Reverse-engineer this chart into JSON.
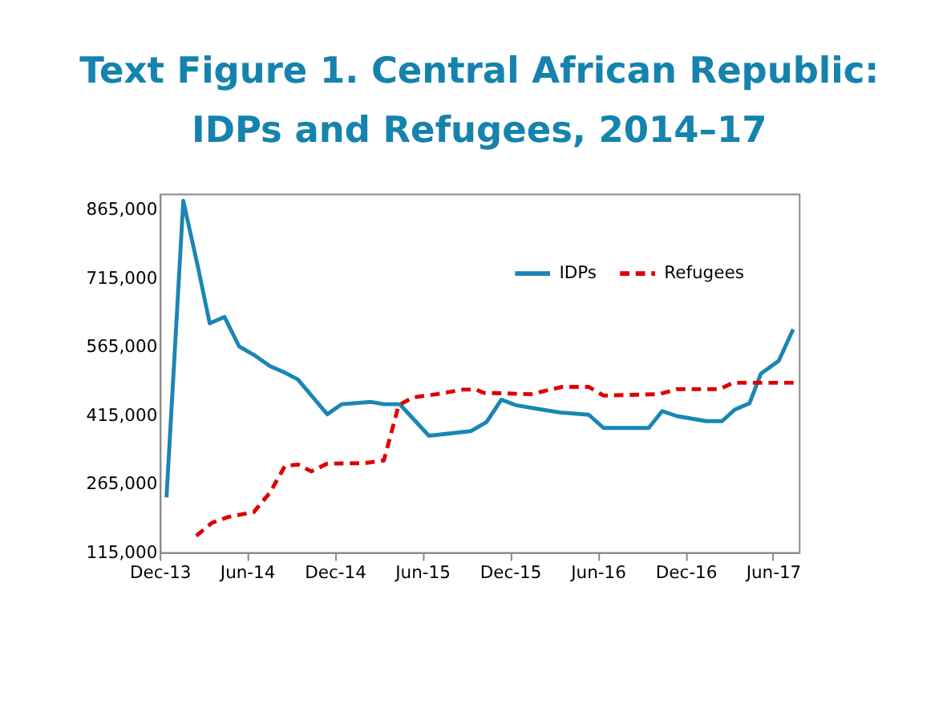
{
  "chart_data": {
    "type": "line",
    "title": "Text Figure 1. Central African Republic:\nIDPs and Refugees, 2014–17",
    "xlim": [
      "2013-12-01",
      "2017-07-25"
    ],
    "xticks": [
      {
        "value": "2013-12-01",
        "label": "Dec-13"
      },
      {
        "value": "2014-06-01",
        "label": "Jun-14"
      },
      {
        "value": "2014-12-01",
        "label": "Dec-14"
      },
      {
        "value": "2015-06-01",
        "label": "Jun-15"
      },
      {
        "value": "2015-12-01",
        "label": "Dec-15"
      },
      {
        "value": "2016-06-01",
        "label": "Jun-16"
      },
      {
        "value": "2016-12-01",
        "label": "Dec-16"
      },
      {
        "value": "2017-06-01",
        "label": "Jun-17"
      }
    ],
    "ylim": [
      115000,
      900000
    ],
    "yticks": [
      {
        "value": 115000,
        "label": "115,000"
      },
      {
        "value": 265000,
        "label": "265,000"
      },
      {
        "value": 415000,
        "label": "415,000"
      },
      {
        "value": 565000,
        "label": "565,000"
      },
      {
        "value": 715000,
        "label": "715,000"
      },
      {
        "value": 865000,
        "label": "865,000"
      }
    ],
    "grid": false,
    "legend": "top right",
    "series": [
      {
        "name": "IDPs",
        "color": "#1a86b4",
        "line_style": "solid",
        "x": [
          "2013-12-15",
          "2014-01-19",
          "2014-02-19",
          "2014-03-15",
          "2014-04-15",
          "2014-05-15",
          "2014-06-15",
          "2014-07-19",
          "2014-08-19",
          "2014-09-15",
          "2014-11-15",
          "2014-12-15",
          "2015-02-15",
          "2015-03-13",
          "2015-04-15",
          "2015-06-15",
          "2015-09-10",
          "2015-10-13",
          "2015-11-13",
          "2015-12-13",
          "2016-02-07",
          "2016-03-13",
          "2016-05-13",
          "2016-06-13",
          "2016-09-15",
          "2016-10-13",
          "2016-11-13",
          "2017-01-13",
          "2017-02-15",
          "2017-03-13",
          "2017-04-13",
          "2017-05-07",
          "2017-06-13",
          "2017-07-13"
        ],
        "values": [
          235000,
          884000,
          737000,
          616000,
          630000,
          566000,
          547000,
          522000,
          508000,
          493000,
          417000,
          439000,
          444000,
          439000,
          439000,
          370000,
          380000,
          400000,
          449000,
          437000,
          427000,
          421000,
          416000,
          387000,
          387000,
          424000,
          413000,
          402000,
          402000,
          427000,
          441000,
          506000,
          534000,
          603000
        ]
      },
      {
        "name": "Refugees",
        "color": "#e00000",
        "line_style": "dashed",
        "x": [
          "2014-02-15",
          "2014-03-19",
          "2014-04-22",
          "2014-06-15",
          "2014-07-19",
          "2014-08-19",
          "2014-09-15",
          "2014-10-13",
          "2014-11-15",
          "2015-02-01",
          "2015-03-13",
          "2015-04-13",
          "2015-05-13",
          "2015-07-01",
          "2015-08-25",
          "2015-09-22",
          "2015-10-07",
          "2016-01-13",
          "2016-03-19",
          "2016-05-13",
          "2016-06-13",
          "2016-10-07",
          "2016-11-13",
          "2017-02-10",
          "2017-03-10",
          "2017-07-15"
        ],
        "values": [
          151000,
          179000,
          192000,
          203000,
          246000,
          304000,
          307000,
          292000,
          309000,
          310000,
          316000,
          437000,
          454000,
          461000,
          471000,
          471000,
          464000,
          461000,
          477000,
          477000,
          458000,
          461000,
          472000,
          472000,
          486000,
          486000
        ]
      }
    ]
  }
}
